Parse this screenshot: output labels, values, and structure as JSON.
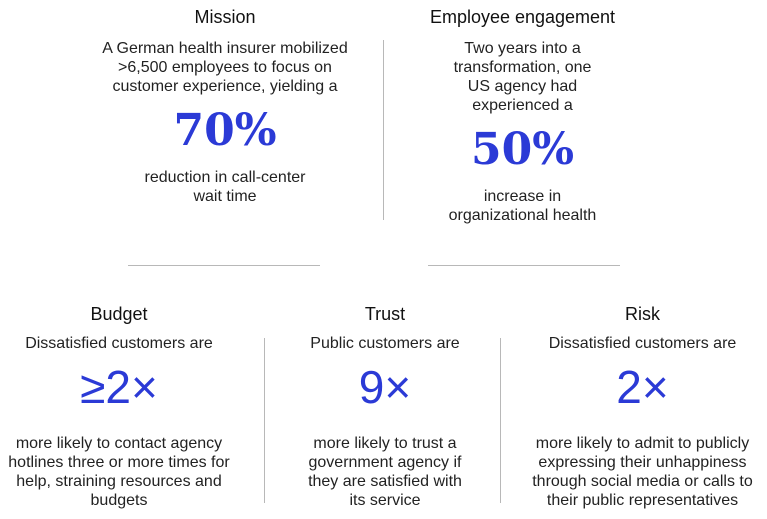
{
  "colors": {
    "accent": "#2b3ad6",
    "divider": "#b8b8b8",
    "text": "#222222"
  },
  "panels": {
    "mission": {
      "heading": "Mission",
      "intro": "A German health insurer mobilized >6,500 employees to focus on customer experience, yielding a",
      "stat": "70%",
      "outro": "reduction in call-center wait time"
    },
    "engagement": {
      "heading": "Employee engagement",
      "intro": "Two years into a transformation, one US agency had experienced a",
      "stat": "50%",
      "outro": "increase in organizational health"
    },
    "budget": {
      "heading": "Budget",
      "intro": "Dissatisfied customers are",
      "stat": "≥2×",
      "outro": "more likely to contact agency hotlines three or more times for help, straining resources and budgets"
    },
    "trust": {
      "heading": "Trust",
      "intro": "Public customers are",
      "stat": "9×",
      "outro": "more likely to trust a government agency if they are satisfied with its service"
    },
    "risk": {
      "heading": "Risk",
      "intro": "Dissatisfied customers are",
      "stat": "2×",
      "outro": "more likely to admit to publicly expressing their unhappiness through social media or calls to their public representatives"
    }
  }
}
